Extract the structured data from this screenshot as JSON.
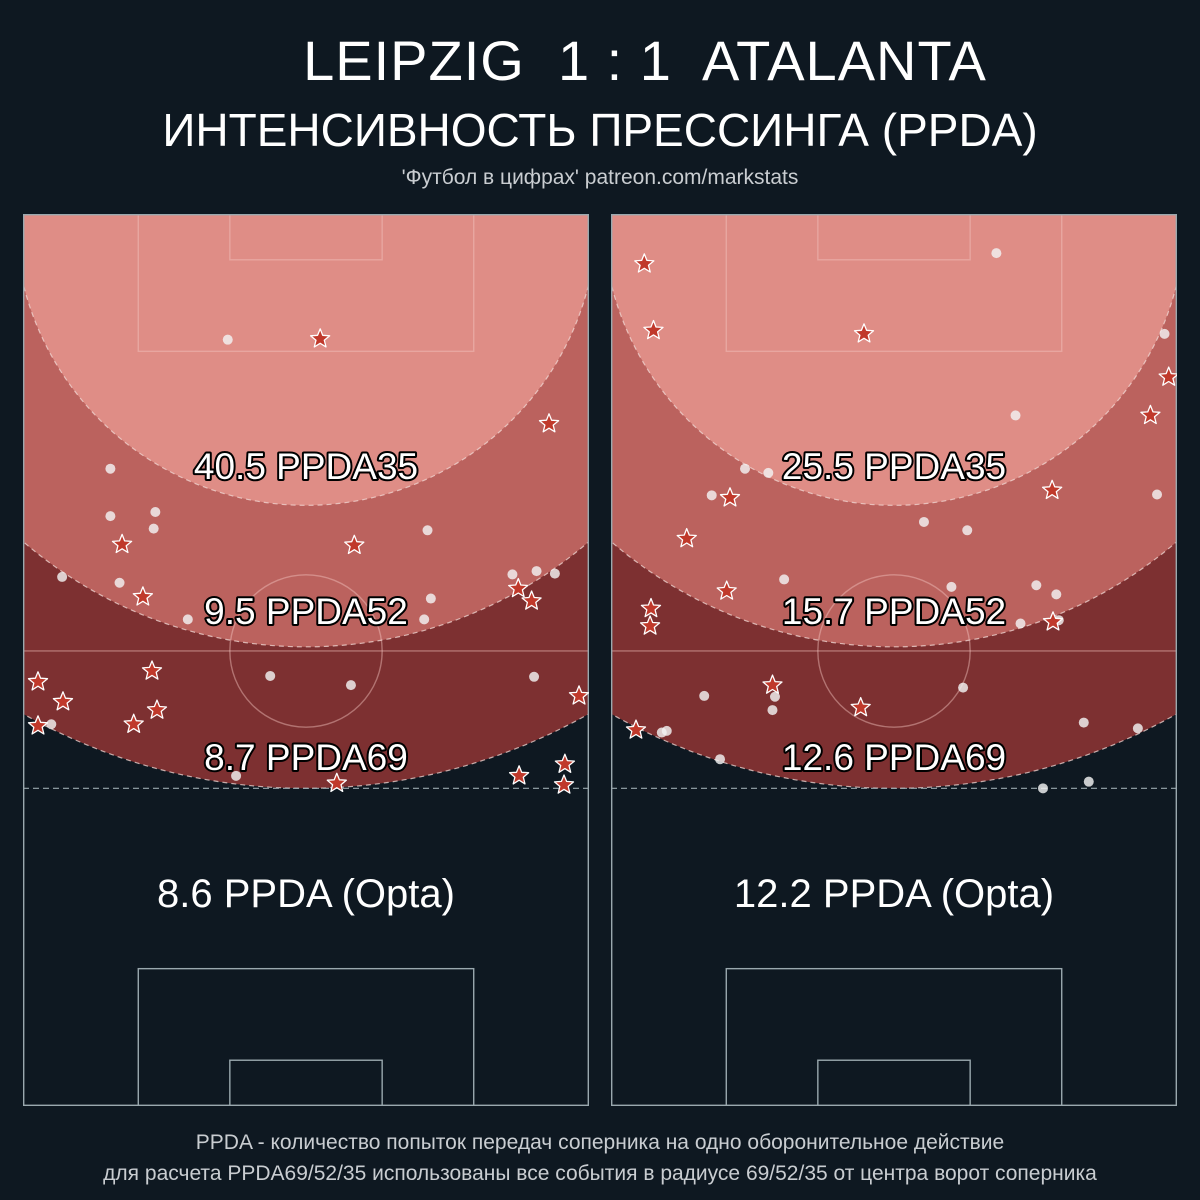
{
  "header": {
    "title": "LEIPZIG  1 : 1  ATALANTA",
    "subtitle": "ИНТЕНСИВНОСТЬ ПРЕССИНГА (PPDA)",
    "credit": "'Футбол в цифрах' patreon.com/markstats"
  },
  "footer": {
    "line1": "PPDA - количество попыток передач соперника на одно оборонительное действие",
    "line2": "для расчета PPDA69/52/35 использованы все события в радиусе 69/52/35 от центра ворот соперника"
  },
  "colors": {
    "background": "#0e1821",
    "zone35": "#df8d86",
    "zone52": "#bb625e",
    "zone69": "#7d3031",
    "star": "#c0392b",
    "dot": "#f3f3f3"
  },
  "chart_data": [
    {
      "type": "scatter",
      "team": "Leipzig",
      "labels": {
        "ppda35": "40.5 PPDA35",
        "ppda52": "9.5 PPDA52",
        "ppda69": "8.7 PPDA69",
        "opta": "8.6 PPDA (Opta)"
      },
      "ppda35": 40.5,
      "ppda52": 9.5,
      "ppda69": 8.7,
      "opta": 8.6,
      "pitch_units": {
        "x_range": [
          0,
          68
        ],
        "y_range": [
          0,
          105
        ]
      },
      "stars": [
        [
          35.7,
          15.0
        ],
        [
          63.2,
          25.2
        ],
        [
          11.9,
          39.7
        ],
        [
          39.8,
          39.8
        ],
        [
          14.4,
          46.0
        ],
        [
          59.5,
          45.0
        ],
        [
          61.1,
          46.5
        ],
        [
          15.5,
          54.9
        ],
        [
          1.8,
          56.2
        ],
        [
          16.1,
          59.6
        ],
        [
          4.8,
          58.6
        ],
        [
          13.3,
          61.3
        ],
        [
          1.8,
          61.5
        ],
        [
          66.8,
          57.9
        ],
        [
          65.1,
          66.1
        ],
        [
          59.6,
          67.5
        ],
        [
          37.7,
          68.4
        ],
        [
          65.0,
          68.6
        ]
      ],
      "dots": [
        [
          24.6,
          15.1
        ],
        [
          10.5,
          30.6
        ],
        [
          10.5,
          36.3
        ],
        [
          15.9,
          35.8
        ],
        [
          15.7,
          37.8
        ],
        [
          48.6,
          38.0
        ],
        [
          4.7,
          43.6
        ],
        [
          11.6,
          44.3
        ],
        [
          58.8,
          43.3
        ],
        [
          61.7,
          42.9
        ],
        [
          63.9,
          43.2
        ],
        [
          49.0,
          46.2
        ],
        [
          19.8,
          48.7
        ],
        [
          48.2,
          48.7
        ],
        [
          29.7,
          55.5
        ],
        [
          39.4,
          56.6
        ],
        [
          61.4,
          55.6
        ],
        [
          3.4,
          61.3
        ],
        [
          25.6,
          67.5
        ]
      ]
    },
    {
      "type": "scatter",
      "team": "Atalanta",
      "labels": {
        "ppda35": "25.5 PPDA35",
        "ppda52": "15.7 PPDA52",
        "ppda69": "12.6 PPDA69",
        "opta": "12.2 PPDA (Opta)"
      },
      "ppda35": 25.5,
      "ppda52": 15.7,
      "ppda69": 12.6,
      "opta": 12.2,
      "pitch_units": {
        "x_range": [
          0,
          68
        ],
        "y_range": [
          0,
          105
        ]
      },
      "stars": [
        [
          4.0,
          6.0
        ],
        [
          5.1,
          14.0
        ],
        [
          30.4,
          14.4
        ],
        [
          67.0,
          19.6
        ],
        [
          64.8,
          24.2
        ],
        [
          53.0,
          33.2
        ],
        [
          14.3,
          34.1
        ],
        [
          9.1,
          39.0
        ],
        [
          13.9,
          45.3
        ],
        [
          4.8,
          47.4
        ],
        [
          4.7,
          49.5
        ],
        [
          53.1,
          49.0
        ],
        [
          19.4,
          56.6
        ],
        [
          30.0,
          59.3
        ],
        [
          3.0,
          62.0
        ]
      ],
      "dots": [
        [
          46.3,
          4.7
        ],
        [
          66.5,
          14.4
        ],
        [
          48.6,
          24.2
        ],
        [
          16.1,
          30.6
        ],
        [
          18.9,
          31.1
        ],
        [
          12.1,
          33.8
        ],
        [
          65.6,
          33.7
        ],
        [
          37.6,
          37.0
        ],
        [
          42.8,
          38.0
        ],
        [
          20.8,
          43.9
        ],
        [
          40.9,
          44.8
        ],
        [
          51.1,
          44.6
        ],
        [
          53.5,
          45.7
        ],
        [
          53.8,
          48.8
        ],
        [
          49.2,
          49.2
        ],
        [
          19.7,
          58.0
        ],
        [
          11.2,
          57.9
        ],
        [
          42.3,
          56.9
        ],
        [
          19.4,
          59.6
        ],
        [
          56.8,
          61.1
        ],
        [
          63.3,
          61.8
        ],
        [
          6.1,
          62.3
        ],
        [
          6.7,
          62.1
        ],
        [
          13.1,
          65.5
        ],
        [
          51.9,
          69.0
        ],
        [
          57.4,
          68.2
        ]
      ]
    }
  ]
}
